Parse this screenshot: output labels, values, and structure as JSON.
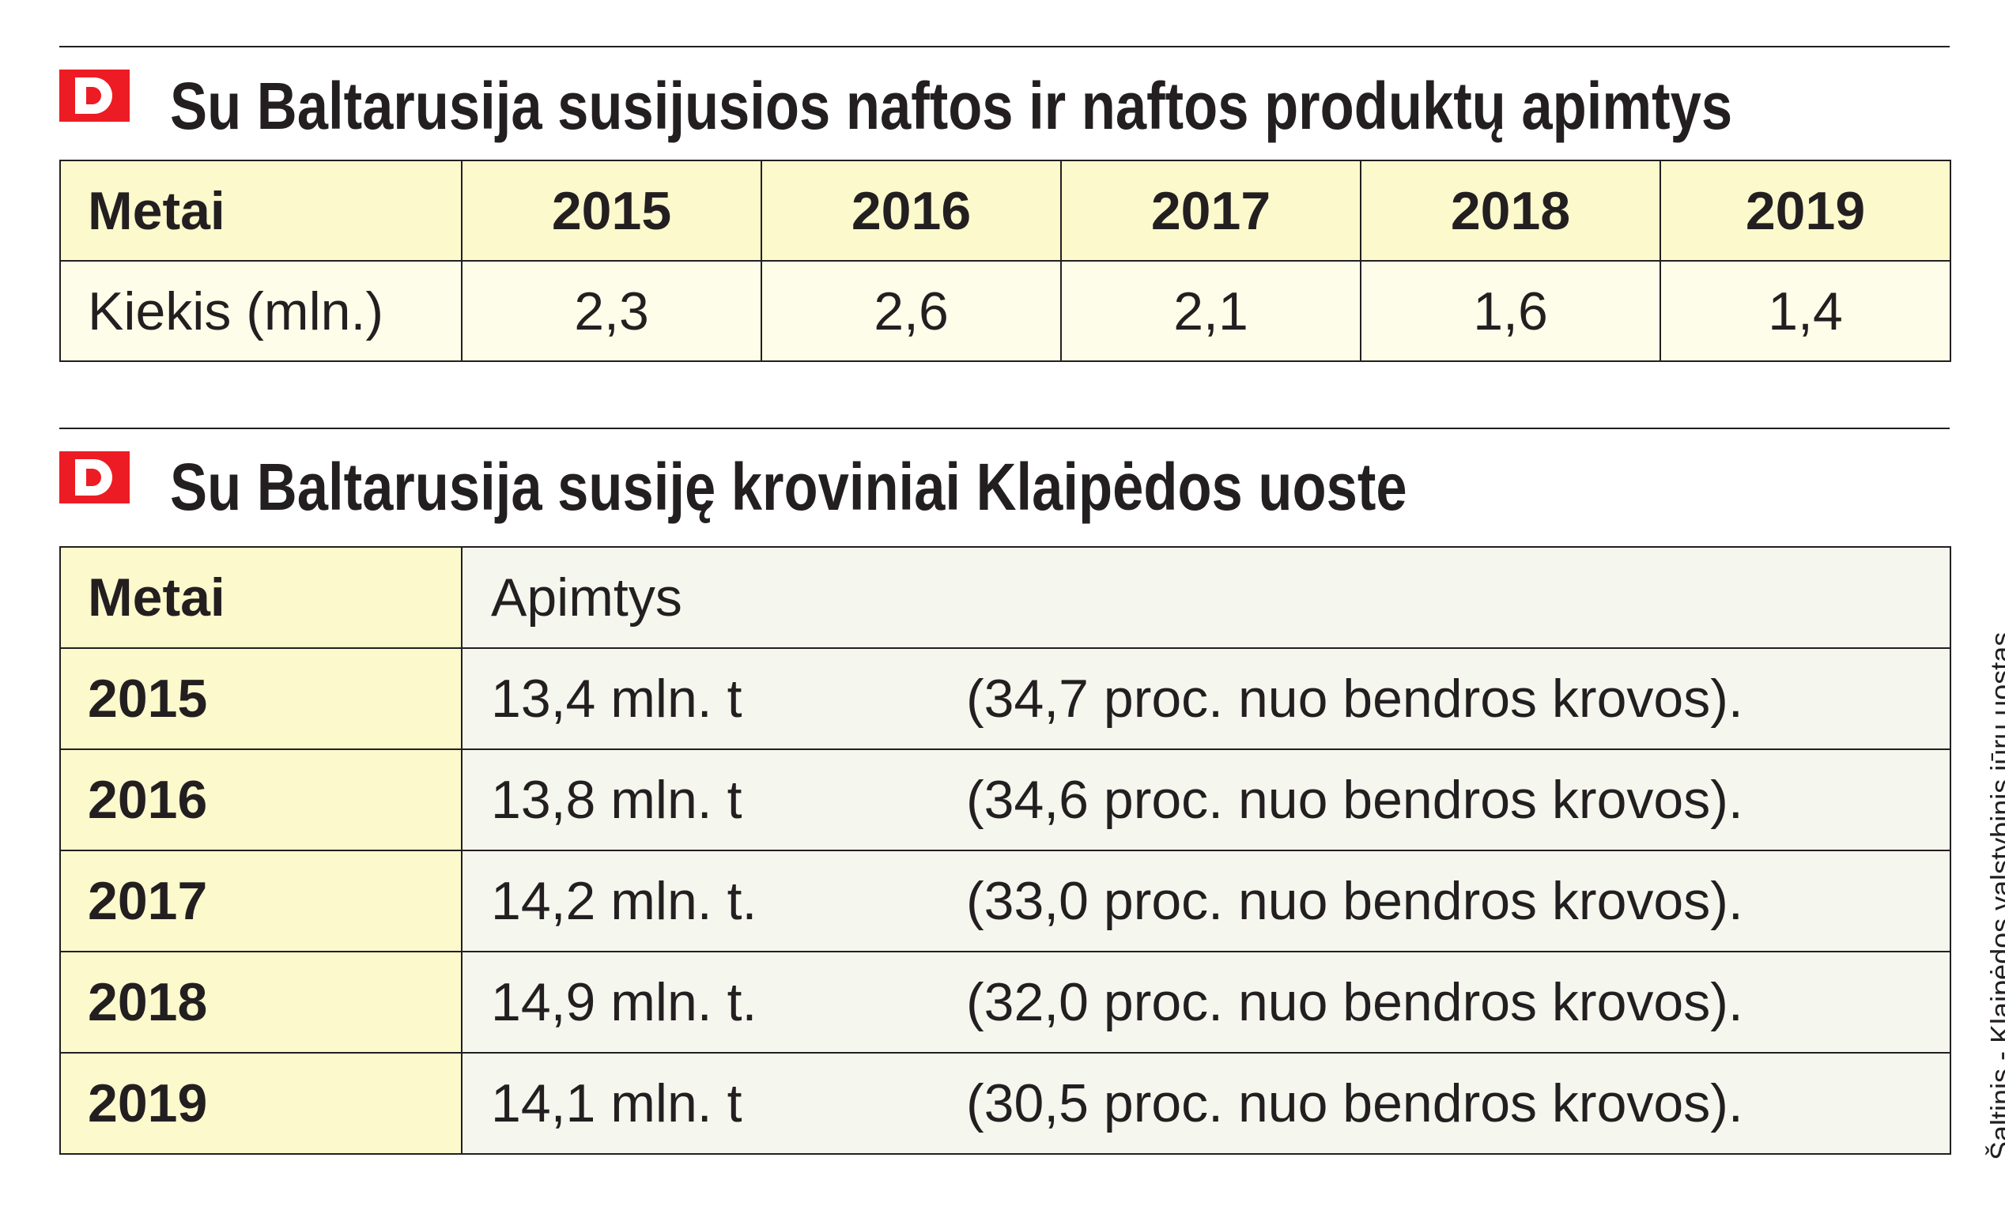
{
  "section1": {
    "title": "Su Baltarusija susijusios naftos ir naftos produktų apimtys",
    "header": [
      "Metai",
      "2015",
      "2016",
      "2017",
      "2018",
      "2019"
    ],
    "row_label": "Kiekis (mln.)",
    "values": [
      "2,3",
      "2,6",
      "2,1",
      "1,6",
      "1,4"
    ]
  },
  "section2": {
    "title": "Su Baltarusija susiję kroviniai Klaipėdos uoste",
    "header": {
      "year": "Metai",
      "volume": "Apimtys"
    },
    "rows": [
      {
        "year": "2015",
        "amount": "13,4 mln. t",
        "share": "(34,7 proc. nuo bendros krovos)."
      },
      {
        "year": "2016",
        "amount": "13,8 mln. t",
        "share": "(34,6 proc. nuo bendros krovos)."
      },
      {
        "year": "2017",
        "amount": "14,2 mln. t.",
        "share": "(33,0 proc. nuo bendros krovos)."
      },
      {
        "year": "2018",
        "amount": "14,9 mln. t.",
        "share": "(32,0 proc. nuo bendros krovos)."
      },
      {
        "year": "2019",
        "amount": "14,1 mln. t",
        "share": "(30,5 proc. nuo bendros krovos)."
      }
    ]
  },
  "source": "Šaltinis - Klaipėdos valstybinis jūrų uostas",
  "colors": {
    "brand": "#ed1c24",
    "header_fill": "#fcf9cc",
    "cell_fill": "#fdfde9",
    "text": "#231f20"
  },
  "icons": {
    "logo": "d-logo-icon"
  }
}
